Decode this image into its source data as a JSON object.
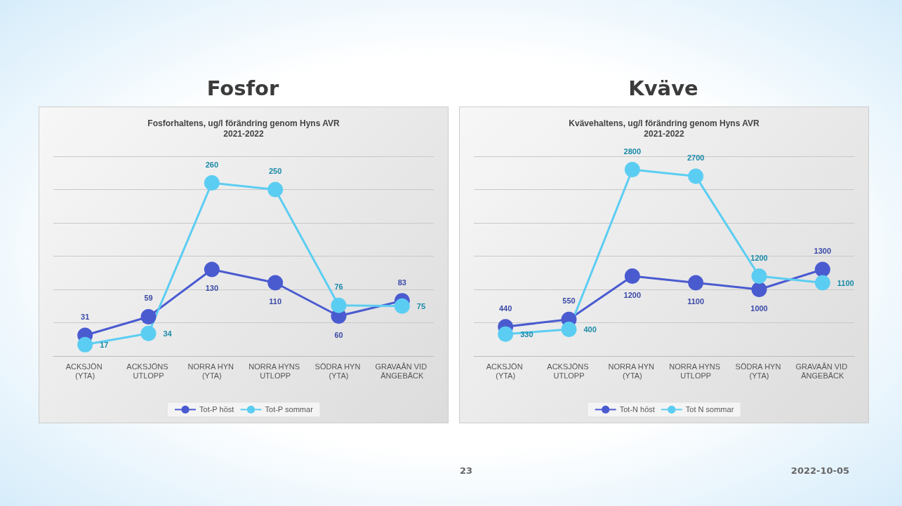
{
  "chart_data": [
    {
      "type": "line",
      "title": "Fosfor",
      "subtitle": "Fosforhaltens, ug/l förändring genom Hyns AVR\n2021-2022",
      "categories": [
        "ACKSJÖN (YTA)",
        "ACKSJÖNS UTLOPP",
        "NORRA HYN (YTA)",
        "NORRA HYNS UTLOPP",
        "SÖDRA HYN (YTA)",
        "GRAVAÅN VID ÄNGEBÄCK"
      ],
      "series": [
        {
          "name": "Tot-P höst",
          "color": "#4a5bd0",
          "values": [
            31,
            59,
            130,
            110,
            60,
            83
          ]
        },
        {
          "name": "Tot-P sommar",
          "color": "#5ccdf2",
          "values": [
            17,
            34,
            260,
            250,
            76,
            75
          ]
        }
      ],
      "ylim": [
        0,
        300
      ],
      "yticks": [
        {
          "value": 0,
          "label": null
        },
        {
          "value": 50,
          "label": null
        },
        {
          "value": 100,
          "label": null
        },
        {
          "value": 150,
          "label": null
        },
        {
          "value": 200,
          "label": null
        },
        {
          "value": 250,
          "label": null
        },
        {
          "value": 300,
          "label": null
        }
      ],
      "tick_labels": "x",
      "grid": "y",
      "legend": "bottom",
      "marker": "circle",
      "data_labels": true
    },
    {
      "type": "line",
      "title": "Kväve",
      "subtitle": "Kvävehaltens, ug/l förändring genom Hyns AVR\n2021-2022",
      "categories": [
        "ACKSJÖN (YTA)",
        "ACKSJÖNS UTLOPP",
        "NORRA HYN (YTA)",
        "NORRA HYNS UTLOPP",
        "SÖDRA HYN (YTA)",
        "GRAVAÅN VID ÄNGEBÄCK"
      ],
      "series": [
        {
          "name": "Tot-N höst",
          "color": "#4a5bd0",
          "values": [
            440,
            550,
            1200,
            1100,
            1000,
            1300
          ]
        },
        {
          "name": "Tot N sommar",
          "color": "#5ccdf2",
          "values": [
            330,
            400,
            2800,
            2700,
            1200,
            1100
          ]
        }
      ],
      "ylim": [
        0,
        3000
      ],
      "yticks": [
        {
          "value": 0,
          "label": null
        },
        {
          "value": 500,
          "label": null
        },
        {
          "value": 1000,
          "label": null
        },
        {
          "value": 1500,
          "label": null
        },
        {
          "value": 2000,
          "label": null
        },
        {
          "value": 2500,
          "label": null
        },
        {
          "value": 3000,
          "label": null
        }
      ],
      "tick_labels": "x",
      "grid": "y",
      "legend": "bottom",
      "marker": "circle",
      "data_labels": true,
      "annotations": [
        "23",
        "2022-10-05"
      ]
    }
  ]
}
